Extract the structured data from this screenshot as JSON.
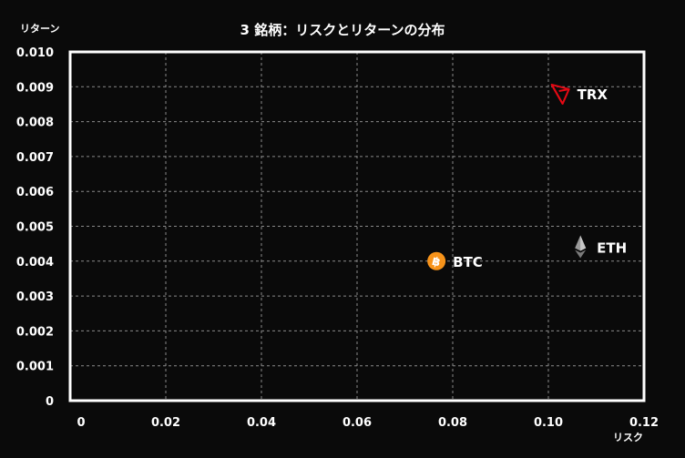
{
  "chart_data": {
    "type": "scatter",
    "title": "3 銘柄：リスクとリターンの分布",
    "xlabel": "リスク",
    "ylabel": "リターン",
    "xlim": [
      0,
      0.12
    ],
    "ylim": [
      0,
      0.01
    ],
    "x_ticks": [
      "0",
      "0.02",
      "0.04",
      "0.06",
      "0.08",
      "0.10",
      "0.12"
    ],
    "y_ticks": [
      "0",
      "0.001",
      "0.002",
      "0.003",
      "0.004",
      "0.005",
      "0.006",
      "0.007",
      "0.008",
      "0.009",
      "0.010"
    ],
    "grid": true,
    "points": [
      {
        "label": "BTC",
        "x": 0.0766,
        "y": 0.004,
        "icon": "bitcoin-icon",
        "color": "#f7931a"
      },
      {
        "label": "ETH",
        "x": 0.1067,
        "y": 0.0044,
        "icon": "ethereum-icon",
        "color": "#9a9a9a"
      },
      {
        "label": "TRX",
        "x": 0.1026,
        "y": 0.0088,
        "icon": "tron-icon",
        "color": "#e50914"
      }
    ]
  }
}
